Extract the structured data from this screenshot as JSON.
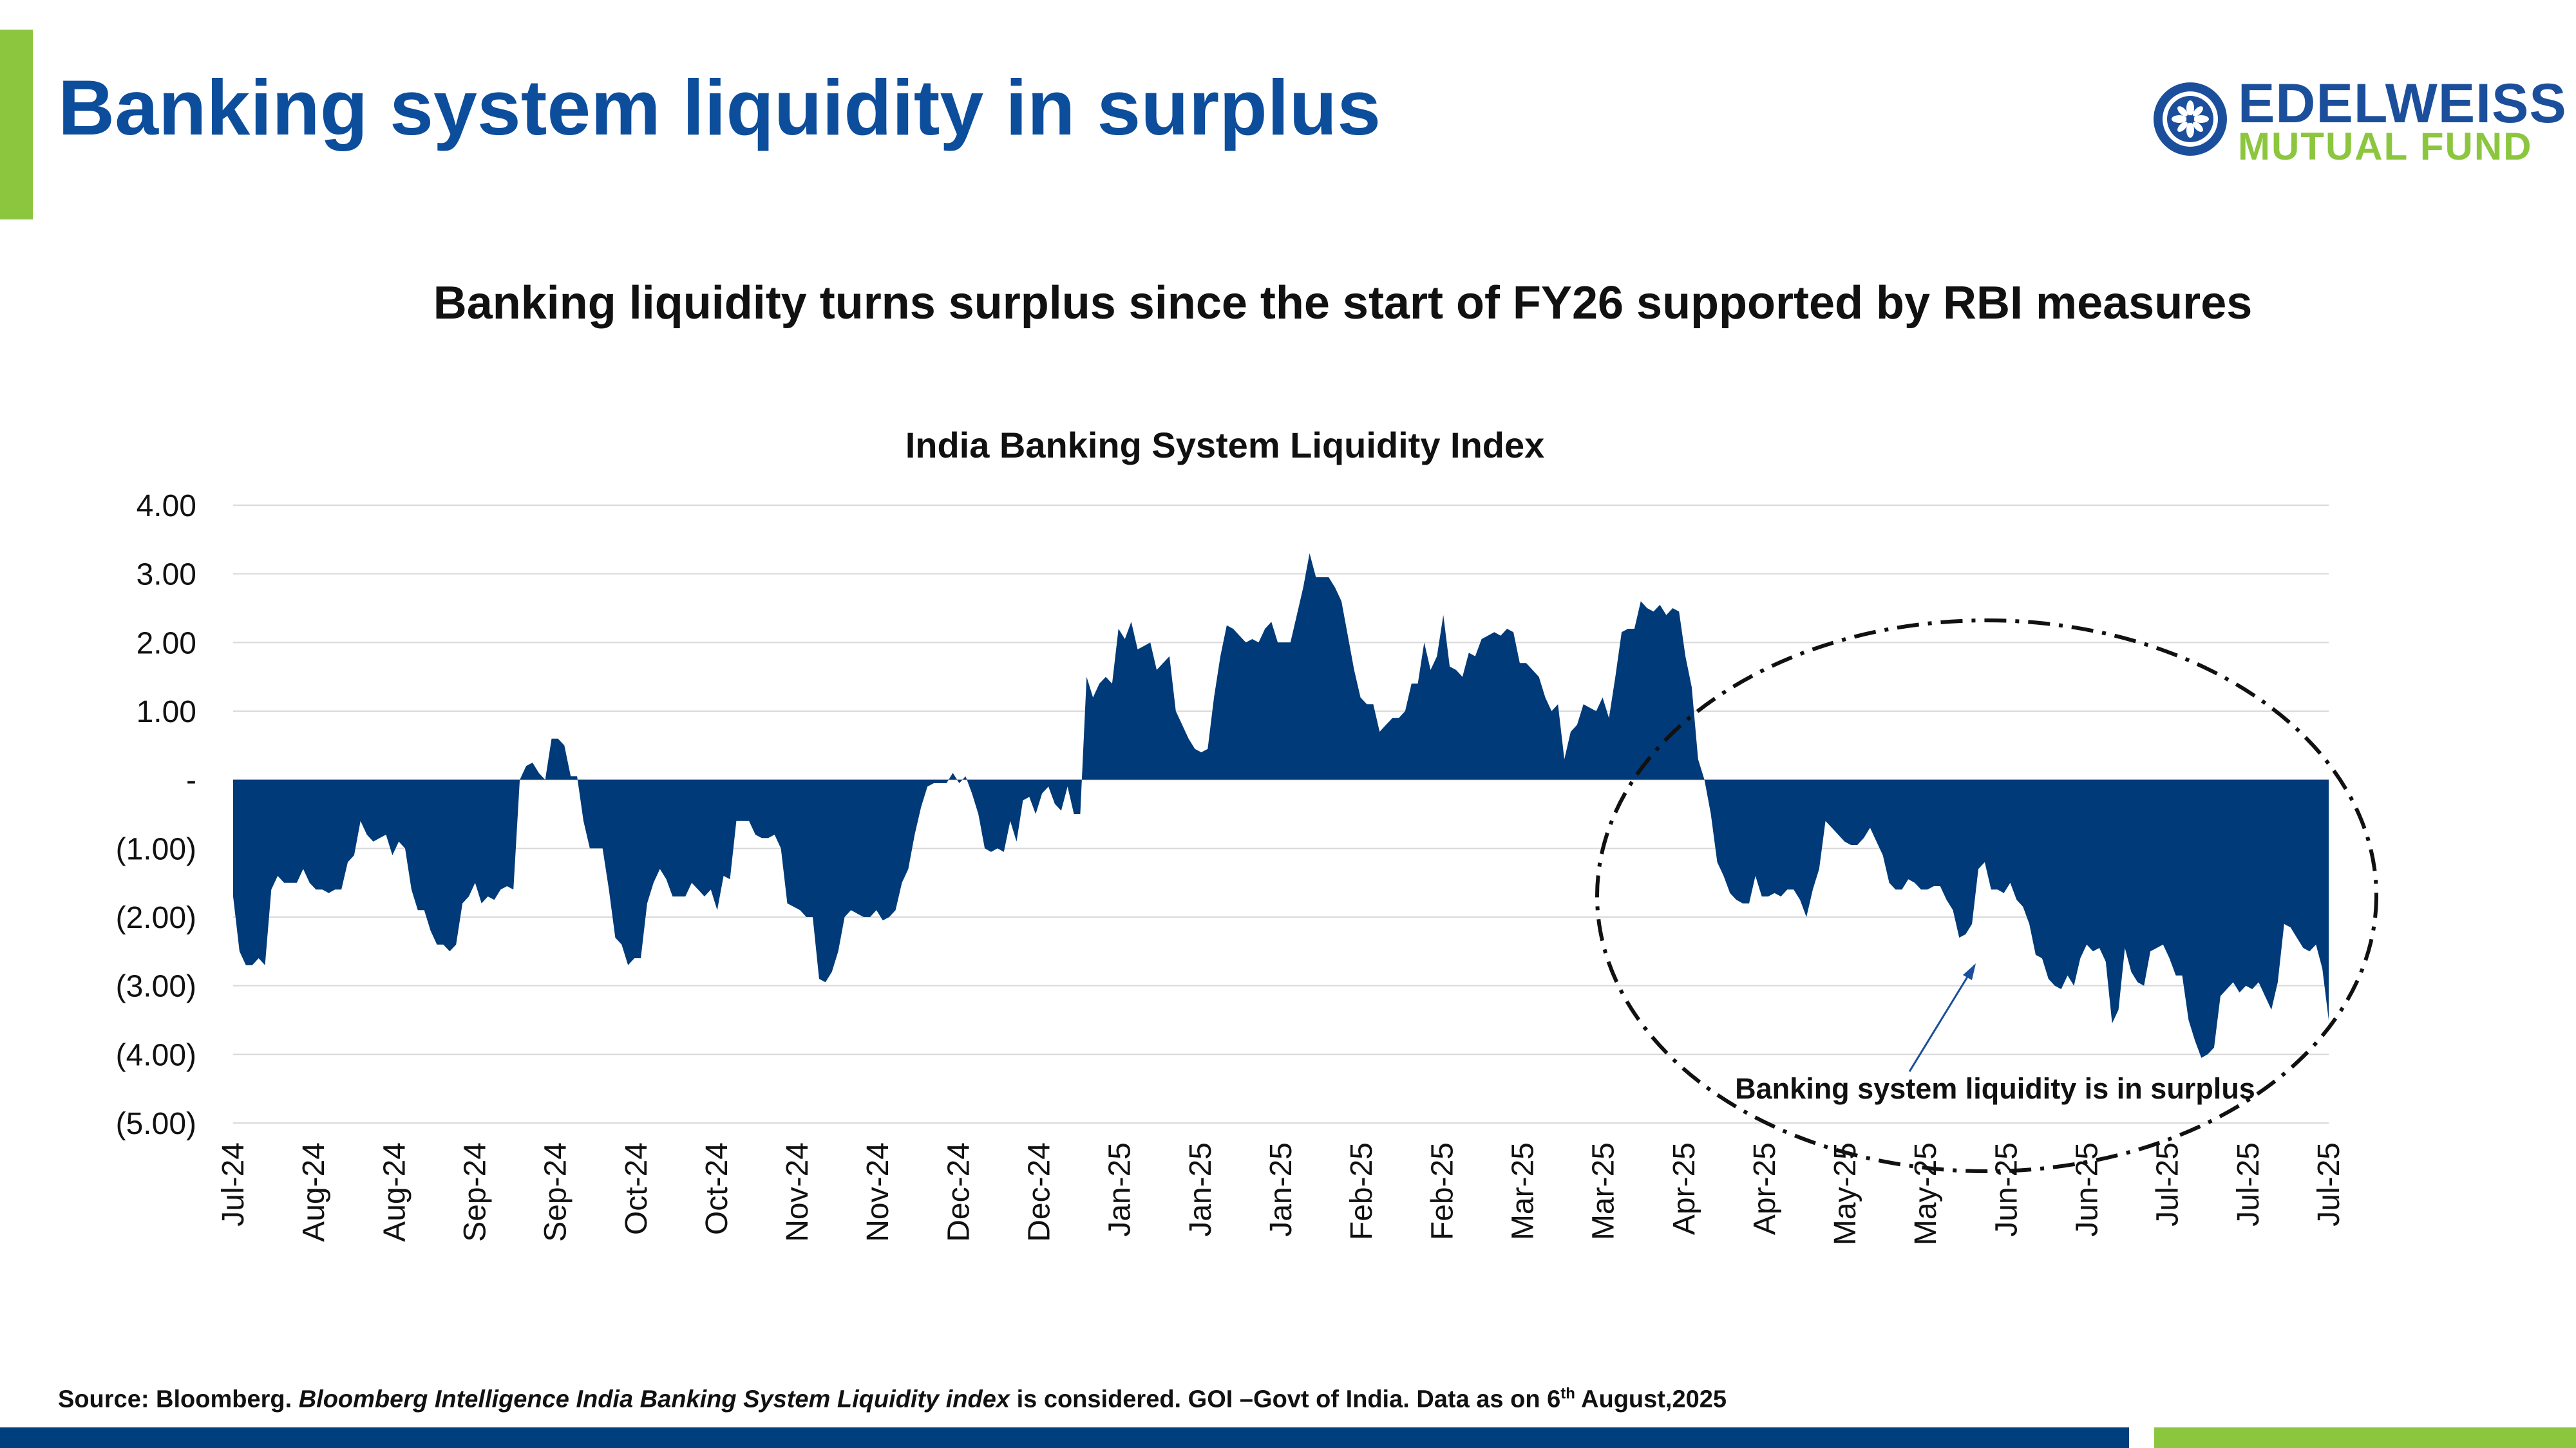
{
  "header": {
    "title": "Banking system liquidity in surplus",
    "logo_name": "EDELWEISS",
    "logo_sub": "MUTUAL FUND"
  },
  "subtitle": "Banking liquidity turns surplus since the start of FY26 supported by RBI measures",
  "colors": {
    "brand_blue": "#0c4d9c",
    "series_fill": "#003a78",
    "accent_green": "#8cc63f"
  },
  "chart_data": {
    "type": "area",
    "title": "India Banking System Liquidity Index",
    "y_ticks": [
      {
        "v": 4,
        "label": "4.00"
      },
      {
        "v": 3,
        "label": "3.00"
      },
      {
        "v": 2,
        "label": "2.00"
      },
      {
        "v": 1,
        "label": "1.00"
      },
      {
        "v": 0,
        "label": "-"
      },
      {
        "v": -1,
        "label": "(1.00)"
      },
      {
        "v": -2,
        "label": "(2.00)"
      },
      {
        "v": -3,
        "label": "(3.00)"
      },
      {
        "v": -4,
        "label": "(4.00)"
      },
      {
        "v": -5,
        "label": "(5.00)"
      }
    ],
    "ylim": [
      -5,
      4
    ],
    "x_labels": [
      "Jul-24",
      "Aug-24",
      "Aug-24",
      "Sep-24",
      "Sep-24",
      "Oct-24",
      "Oct-24",
      "Nov-24",
      "Nov-24",
      "Dec-24",
      "Dec-24",
      "Jan-25",
      "Jan-25",
      "Jan-25",
      "Feb-25",
      "Feb-25",
      "Mar-25",
      "Mar-25",
      "Apr-25",
      "Apr-25",
      "May-25",
      "May-25",
      "Jun-25",
      "Jun-25",
      "Jul-25",
      "Jul-25",
      "Jul-25"
    ],
    "grid": "horizontal",
    "series": [
      {
        "values": [
          -1.7,
          -2.5,
          -2.7,
          -2.7,
          -2.6,
          -2.7,
          -1.6,
          -1.4,
          -1.5,
          -1.5,
          -1.5,
          -1.3,
          -1.5,
          -1.6,
          -1.6,
          -1.65,
          -1.6,
          -1.6,
          -1.2,
          -1.1,
          -0.6,
          -0.8,
          -0.9,
          -0.85,
          -0.8,
          -1.1,
          -0.9,
          -1.0,
          -1.6,
          -1.9,
          -1.9,
          -2.2,
          -2.4,
          -2.4,
          -2.5,
          -2.4,
          -1.8,
          -1.7,
          -1.5,
          -1.8,
          -1.7,
          -1.75,
          -1.6,
          -1.55,
          -1.6,
          0.0,
          0.2,
          0.25,
          0.1,
          0.0,
          0.6,
          0.6,
          0.5,
          0.05,
          0.05,
          -0.6,
          -1.0,
          -1.0,
          -1.0,
          -1.6,
          -2.3,
          -2.4,
          -2.7,
          -2.6,
          -2.6,
          -1.8,
          -1.5,
          -1.3,
          -1.45,
          -1.7,
          -1.7,
          -1.7,
          -1.5,
          -1.6,
          -1.7,
          -1.6,
          -1.9,
          -1.4,
          -1.45,
          -0.6,
          -0.6,
          -0.6,
          -0.8,
          -0.85,
          -0.85,
          -0.8,
          -1.0,
          -1.8,
          -1.85,
          -1.9,
          -2.0,
          -2.0,
          -2.9,
          -2.95,
          -2.8,
          -2.5,
          -2.0,
          -1.9,
          -1.95,
          -2.0,
          -2.0,
          -1.9,
          -2.05,
          -2.0,
          -1.9,
          -1.5,
          -1.3,
          -0.8,
          -0.4,
          -0.1,
          -0.05,
          -0.05,
          -0.05,
          0.1,
          -0.05,
          0.05,
          -0.2,
          -0.5,
          -1.0,
          -1.05,
          -1.0,
          -1.05,
          -0.6,
          -0.9,
          -0.3,
          -0.25,
          -0.5,
          -0.2,
          -0.1,
          -0.35,
          -0.45,
          -0.1,
          -0.5,
          -0.5,
          1.5,
          1.2,
          1.4,
          1.5,
          1.4,
          2.2,
          2.05,
          2.3,
          1.9,
          1.95,
          2.0,
          1.6,
          1.7,
          1.8,
          1.0,
          0.8,
          0.6,
          0.45,
          0.4,
          0.45,
          1.2,
          1.8,
          2.25,
          2.2,
          2.1,
          2.0,
          2.05,
          2.0,
          2.2,
          2.3,
          2.0,
          2.0,
          2.0,
          2.4,
          2.8,
          3.3,
          2.95,
          2.95,
          2.95,
          2.8,
          2.6,
          2.1,
          1.6,
          1.2,
          1.1,
          1.1,
          0.7,
          0.8,
          0.9,
          0.9,
          1.0,
          1.4,
          1.4,
          2.0,
          1.6,
          1.8,
          2.4,
          1.65,
          1.6,
          1.5,
          1.85,
          1.8,
          2.05,
          2.1,
          2.15,
          2.1,
          2.2,
          2.15,
          1.7,
          1.7,
          1.6,
          1.5,
          1.2,
          1.0,
          1.1,
          0.3,
          0.7,
          0.8,
          1.1,
          1.05,
          1.0,
          1.2,
          0.9,
          1.5,
          2.15,
          2.2,
          2.2,
          2.6,
          2.5,
          2.45,
          2.55,
          2.4,
          2.5,
          2.45,
          1.8,
          1.35,
          0.3,
          0.0,
          -0.5,
          -1.2,
          -1.4,
          -1.65,
          -1.75,
          -1.8,
          -1.8,
          -1.4,
          -1.7,
          -1.7,
          -1.65,
          -1.7,
          -1.6,
          -1.6,
          -1.75,
          -2.0,
          -1.6,
          -1.3,
          -0.6,
          -0.7,
          -0.8,
          -0.9,
          -0.95,
          -0.95,
          -0.85,
          -0.7,
          -0.9,
          -1.1,
          -1.5,
          -1.6,
          -1.6,
          -1.45,
          -1.5,
          -1.6,
          -1.6,
          -1.55,
          -1.55,
          -1.75,
          -1.9,
          -2.3,
          -2.25,
          -2.1,
          -1.3,
          -1.2,
          -1.6,
          -1.6,
          -1.65,
          -1.5,
          -1.75,
          -1.85,
          -2.1,
          -2.55,
          -2.6,
          -2.9,
          -3.0,
          -3.05,
          -2.85,
          -3.0,
          -2.6,
          -2.4,
          -2.5,
          -2.45,
          -2.65,
          -3.55,
          -3.35,
          -2.45,
          -2.8,
          -2.95,
          -3.0,
          -2.5,
          -2.45,
          -2.4,
          -2.6,
          -2.85,
          -2.85,
          -3.5,
          -3.8,
          -4.05,
          -4.0,
          -3.9,
          -3.15,
          -3.05,
          -2.95,
          -3.1,
          -3.0,
          -3.05,
          -2.95,
          -3.15,
          -3.35,
          -2.95,
          -2.1,
          -2.15,
          -2.3,
          -2.45,
          -2.5,
          -2.4,
          -2.75,
          -3.5
        ]
      }
    ],
    "annotation": "Banking system liquidity is in surplus"
  },
  "source": {
    "prefix": "Source: Bloomberg. ",
    "italic": "Bloomberg Intelligence India Banking System Liquidity index",
    "middle": " is considered. GOI –Govt of India. Data as on 6",
    "sup": "th",
    "suffix": " August,2025"
  }
}
